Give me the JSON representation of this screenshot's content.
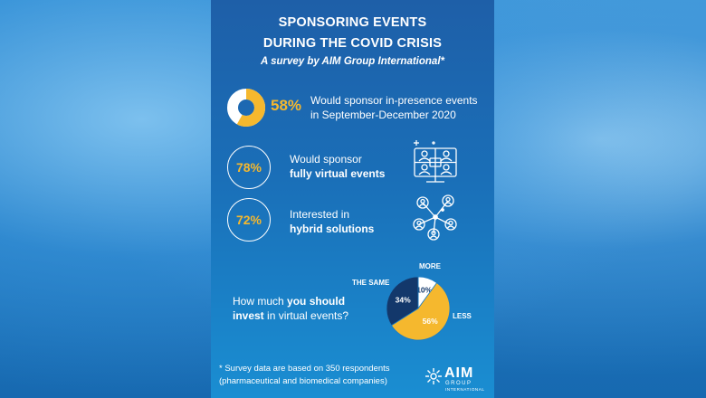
{
  "header": {
    "title_line1": "SPONSORING EVENTS",
    "title_line2": "DURING THE COVID CRISIS",
    "subtitle": "A survey by AIM Group International*"
  },
  "stats": [
    {
      "value": "58%",
      "line1": "Would sponsor in-presence events",
      "line2": "in September-December 2020",
      "fraction": 0.58
    },
    {
      "value": "78%",
      "line1": "Would sponsor",
      "line2": "fully virtual events"
    },
    {
      "value": "72%",
      "line1": "Interested in",
      "line2": "hybrid solutions"
    }
  ],
  "question": {
    "part1": "How much ",
    "bold1": "you should",
    "bold2": "invest",
    "part2": " in virtual events?"
  },
  "chart_data": {
    "type": "pie",
    "categories": [
      "MORE",
      "LESS",
      "THE SAME"
    ],
    "values": [
      10,
      56,
      34
    ],
    "labels": [
      "10%",
      "56%",
      "34%"
    ],
    "colors": [
      "#ffffff",
      "#f5b82e",
      "#13386b"
    ]
  },
  "footnote": {
    "line1": "* Survey data are based on 350 respondents",
    "line2": "(pharmaceutical and biomedical companies)"
  },
  "logo": {
    "main": "AIM",
    "sub1": "GROUP",
    "sub2": "INTERNATIONAL"
  },
  "colors": {
    "accent": "#f5b82e",
    "dark": "#13386b"
  },
  "icons": [
    "donut-chart-icon",
    "video-conference-icon",
    "network-people-icon"
  ]
}
